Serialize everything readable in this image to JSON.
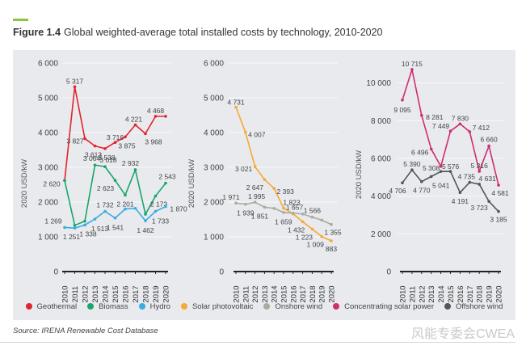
{
  "figure": {
    "label": "Figure 1.4",
    "title": "Global weighted-average total installed costs by technology, 2010-2020",
    "accent_color": "#8cc63f"
  },
  "source": "Source: IRENA Renewable Cost Database",
  "watermark": "风能专委会CWEA",
  "legend": [
    {
      "name": "Geothermal",
      "color": "#e3242b"
    },
    {
      "name": "Biomass",
      "color": "#1aa56b"
    },
    {
      "name": "Hydro",
      "color": "#3aace2"
    },
    {
      "name": "Solar photovoltaic",
      "color": "#f7a935"
    },
    {
      "name": "Onshore wind",
      "color": "#a8ab9e"
    },
    {
      "name": "Concentrating solar power",
      "color": "#d02c73"
    },
    {
      "name": "Offshore wind",
      "color": "#555558"
    }
  ],
  "chart_data": [
    {
      "type": "line",
      "title": "",
      "xlabel": "",
      "ylabel": "2020 USD/kW",
      "x": [
        "2010",
        "2011",
        "2012",
        "2013",
        "2014",
        "2015",
        "2016",
        "2017",
        "2018",
        "2019",
        "2020"
      ],
      "ylim": [
        0,
        6000
      ],
      "yticks": [
        "0",
        "1 000",
        "2 000",
        "3 000",
        "4 000",
        "5 000",
        "6 000"
      ],
      "ytick_values": [
        0,
        1000,
        2000,
        3000,
        4000,
        5000,
        6000
      ],
      "grid": true,
      "series": [
        {
          "name": "Geothermal",
          "color": "#e3242b",
          "values": [
            2620,
            5317,
            3827,
            3613,
            3538,
            3716,
            3875,
            4221,
            3968,
            4468,
            4468
          ],
          "labels": [
            "2 620",
            "5 317",
            "3 827",
            "3 613",
            "3 538",
            "3 716",
            "3 875",
            "4 221",
            "3 968",
            "4 468",
            ""
          ]
        },
        {
          "name": "Biomass",
          "color": "#1aa56b",
          "values": [
            2620,
            1330,
            1450,
            3064,
            3018,
            2623,
            2201,
            2932,
            1650,
            2173,
            2543
          ],
          "labels": [
            "",
            "",
            "",
            "3 064",
            "3 018",
            "2 623",
            "2 201",
            "2 932",
            "",
            "2 173",
            "2 543"
          ]
        },
        {
          "name": "Hydro",
          "color": "#3aace2",
          "values": [
            1269,
            1251,
            1338,
            1513,
            1732,
            1541,
            1800,
            1820,
            1462,
            1733,
            1870
          ],
          "labels": [
            "1 269",
            "1 251",
            "1 338",
            "1 513",
            "1 732",
            "1 541",
            "",
            "",
            "1 462",
            "1 733",
            "1 870"
          ]
        }
      ]
    },
    {
      "type": "line",
      "title": "",
      "xlabel": "",
      "ylabel": "2020 USD/kW",
      "x": [
        "2010",
        "2011",
        "2012",
        "2013",
        "2014",
        "2015",
        "2016",
        "2017",
        "2018",
        "2019",
        "2020"
      ],
      "ylim": [
        0,
        6000
      ],
      "yticks": [
        "0",
        "1 000",
        "2 000",
        "3 000",
        "4 000",
        "5 000",
        "6 000"
      ],
      "ytick_values": [
        0,
        1000,
        2000,
        3000,
        4000,
        5000,
        6000
      ],
      "grid": true,
      "series": [
        {
          "name": "Solar photovoltaic",
          "color": "#f7a935",
          "values": [
            4731,
            4007,
            3021,
            2647,
            2393,
            1823,
            1659,
            1432,
            1223,
            1009,
            883
          ],
          "labels": [
            "4 731",
            "4 007",
            "3 021",
            "2 647",
            "2 393",
            "1 823",
            "1 659",
            "1 432",
            "1 223",
            "1 009",
            "883"
          ]
        },
        {
          "name": "Onshore wind",
          "color": "#a8ab9e",
          "values": [
            1971,
            1939,
            1995,
            1851,
            1820,
            1700,
            1680,
            1657,
            1566,
            1480,
            1355
          ],
          "labels": [
            "1 971",
            "1 939",
            "1 995",
            "1 851",
            "",
            "",
            "",
            "1 657",
            "1 566",
            "",
            "1 355"
          ]
        }
      ]
    },
    {
      "type": "line",
      "title": "",
      "xlabel": "",
      "ylabel": "2020 USD/kW",
      "x": [
        "2010",
        "2011",
        "2012",
        "2013",
        "2014",
        "2015",
        "2016",
        "2017",
        "2018",
        "2019",
        "2020"
      ],
      "ylim": [
        0,
        12000
      ],
      "yticks": [
        "0",
        "2 000",
        "4 000",
        "6 000",
        "8 000",
        "10 000"
      ],
      "ytick_values": [
        0,
        2000,
        4000,
        6000,
        8000,
        10000
      ],
      "grid": true,
      "series": [
        {
          "name": "Concentrating solar power",
          "color": "#d02c73",
          "values": [
            9095,
            10715,
            8281,
            6496,
            5576,
            7449,
            7830,
            7412,
            5316,
            6660,
            4581
          ],
          "labels": [
            "9 095",
            "10 715",
            "8 281",
            "6 496",
            "5 576",
            "7 449",
            "7 830",
            "7 412",
            "5 316",
            "6 660",
            "4 581"
          ]
        },
        {
          "name": "Offshore wind",
          "color": "#555558",
          "values": [
            4706,
            5390,
            4770,
            5041,
            5308,
            5310,
            4191,
            4735,
            4631,
            3723,
            3185
          ],
          "labels": [
            "4 706",
            "5 390",
            "4 770",
            "5 041",
            "5 308",
            "",
            "4 191",
            "4 735",
            "4 631",
            "3 723",
            "3 185"
          ]
        }
      ]
    }
  ]
}
